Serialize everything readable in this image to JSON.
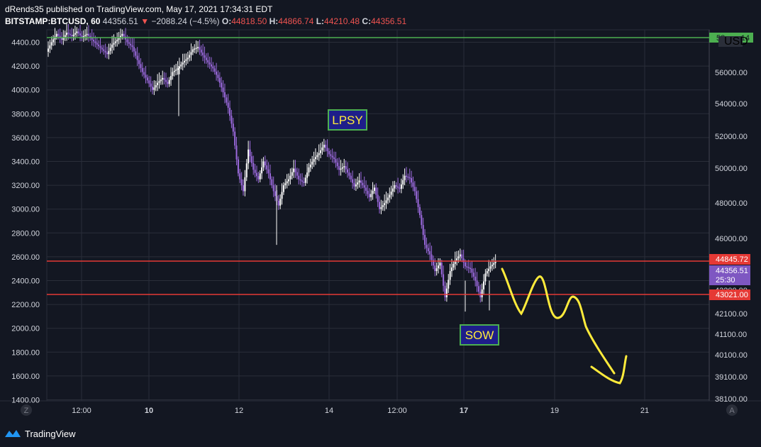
{
  "header": {
    "line1": "dRends35 published on TradingView.com, May 17, 2021 17:34:31 EDT",
    "symbol": "BITSTAMP:BTCUSD, 60",
    "last": "44356.51",
    "change": "−2088.24 (−4.5%)",
    "o_label": "O:",
    "o": "44818.50",
    "h_label": "H:",
    "h": "44866.74",
    "l_label": "L:",
    "l": "44210.48",
    "c_label": "C:",
    "c": "44356.51"
  },
  "footer": {
    "brand": "TradingView"
  },
  "colors": {
    "background": "#131722",
    "grid": "#2a2e39",
    "candle": "#ffffff",
    "candle_wick_alt": "#9c6ade",
    "resistance_line": "#e53935",
    "top_line": "#4caf50",
    "projection": "#ffeb3b",
    "label_box": "#1e1e8a",
    "label_border": "#4caf50",
    "label_text": "#ffeb3b",
    "price_badge": "#7e57c2"
  },
  "chart_data": {
    "type": "candlestick",
    "title": "",
    "x_tick_labels": [
      "12:00",
      "10",
      "12",
      "14",
      "12:00",
      "17",
      "19",
      "21"
    ],
    "left_axis": {
      "ticks": [
        "4400.00",
        "4200.00",
        "4000.00",
        "3800.00",
        "3600.00",
        "3400.00",
        "3200.00",
        "3000.00",
        "2800.00",
        "2600.00",
        "2400.00",
        "2200.00",
        "2000.00",
        "1800.00",
        "1600.00",
        "1400.00"
      ],
      "range": [
        1400,
        4500
      ]
    },
    "right_axis": {
      "ticks": [
        "56000.00",
        "54000.00",
        "52000.00",
        "50000.00",
        "48000.00",
        "46000.00",
        "43200.00",
        "42100.00",
        "41100.00",
        "40100.00",
        "39100.00",
        "38100.00"
      ],
      "currency": "USD",
      "top_partial": "58",
      "top_partial_right": "14"
    },
    "price_path": [
      [
        0,
        4320
      ],
      [
        4,
        4400
      ],
      [
        8,
        4470
      ],
      [
        12,
        4420
      ],
      [
        16,
        4480
      ],
      [
        20,
        4450
      ],
      [
        24,
        4490
      ],
      [
        28,
        4440
      ],
      [
        32,
        4470
      ],
      [
        36,
        4420
      ],
      [
        40,
        4380
      ],
      [
        44,
        4340
      ],
      [
        48,
        4300
      ],
      [
        52,
        4380
      ],
      [
        56,
        4420
      ],
      [
        60,
        4470
      ],
      [
        64,
        4400
      ],
      [
        68,
        4360
      ],
      [
        72,
        4250
      ],
      [
        76,
        4150
      ],
      [
        80,
        4080
      ],
      [
        84,
        4000
      ],
      [
        88,
        4060
      ],
      [
        92,
        4100
      ],
      [
        96,
        4050
      ],
      [
        100,
        4150
      ],
      [
        104,
        4180
      ],
      [
        108,
        4230
      ],
      [
        112,
        4270
      ],
      [
        116,
        4340
      ],
      [
        120,
        4360
      ],
      [
        124,
        4290
      ],
      [
        128,
        4230
      ],
      [
        132,
        4180
      ],
      [
        136,
        4100
      ],
      [
        140,
        3980
      ],
      [
        144,
        3850
      ],
      [
        148,
        3650
      ],
      [
        152,
        3300
      ],
      [
        156,
        3150
      ],
      [
        160,
        3500
      ],
      [
        164,
        3330
      ],
      [
        168,
        3250
      ],
      [
        172,
        3400
      ],
      [
        176,
        3300
      ],
      [
        180,
        3150
      ],
      [
        184,
        3030
      ],
      [
        188,
        3200
      ],
      [
        192,
        3250
      ],
      [
        196,
        3340
      ],
      [
        200,
        3250
      ],
      [
        204,
        3220
      ],
      [
        208,
        3350
      ],
      [
        212,
        3420
      ],
      [
        216,
        3470
      ],
      [
        220,
        3540
      ],
      [
        224,
        3460
      ],
      [
        228,
        3420
      ],
      [
        232,
        3330
      ],
      [
        236,
        3360
      ],
      [
        240,
        3280
      ],
      [
        244,
        3190
      ],
      [
        248,
        3240
      ],
      [
        252,
        3180
      ],
      [
        256,
        3100
      ],
      [
        260,
        3180
      ],
      [
        264,
        3000
      ],
      [
        268,
        3050
      ],
      [
        272,
        3120
      ],
      [
        276,
        3200
      ],
      [
        280,
        3170
      ],
      [
        284,
        3280
      ],
      [
        288,
        3260
      ],
      [
        292,
        3150
      ],
      [
        296,
        2950
      ],
      [
        300,
        2700
      ],
      [
        304,
        2620
      ],
      [
        308,
        2480
      ],
      [
        312,
        2550
      ],
      [
        316,
        2260
      ],
      [
        320,
        2480
      ],
      [
        324,
        2570
      ],
      [
        328,
        2620
      ],
      [
        332,
        2520
      ],
      [
        336,
        2500
      ],
      [
        340,
        2400
      ],
      [
        344,
        2260
      ],
      [
        348,
        2460
      ],
      [
        352,
        2520
      ],
      [
        356,
        2560
      ]
    ],
    "horizontal_lines": [
      {
        "y_left": 4445,
        "color": "green"
      },
      {
        "y_right": 44845.72,
        "color": "red"
      },
      {
        "y_right": 43021.0,
        "color": "red"
      }
    ],
    "price_labels": [
      {
        "value": "44845.72",
        "color": "red"
      },
      {
        "value": "44356.51",
        "sub": "25:30",
        "color": "purple"
      },
      {
        "value": "43021.00",
        "color": "red"
      }
    ],
    "annotations": [
      {
        "text": "LPSY"
      },
      {
        "text": "SOW"
      }
    ]
  },
  "axis_buttons": {
    "left": "Z",
    "right": "A"
  }
}
